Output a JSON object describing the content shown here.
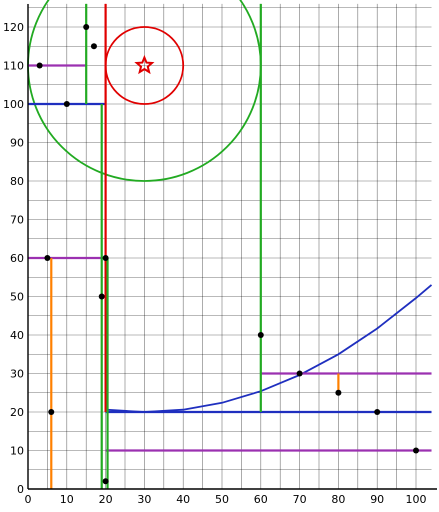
{
  "chart_data": {
    "type": "scatter",
    "title": "",
    "xlabel": "",
    "ylabel": "",
    "xlim": [
      0,
      104
    ],
    "ylim": [
      0,
      126
    ],
    "grid": true,
    "x_ticks": [
      0,
      10,
      20,
      30,
      40,
      50,
      60,
      70,
      80,
      90,
      100
    ],
    "y_ticks": [
      0,
      10,
      20,
      30,
      40,
      50,
      60,
      70,
      80,
      90,
      100,
      110,
      120
    ],
    "x_tick_labels": [
      "0",
      "10",
      "20",
      "30",
      "40",
      "50",
      "60",
      "70",
      "80",
      "90",
      "100"
    ],
    "y_tick_labels": [
      "0",
      "10",
      "20",
      "30",
      "40",
      "50",
      "60",
      "70",
      "80",
      "90",
      "100",
      "110",
      "120"
    ],
    "colors": {
      "grid": "#000000",
      "red": "#e00000",
      "green": "#22aa22",
      "blue": "#1f2fbf",
      "purple": "#9b30b0",
      "orange": "#ff8000",
      "point": "#000000"
    },
    "points": [
      {
        "x": 15,
        "y": 120
      },
      {
        "x": 17,
        "y": 115
      },
      {
        "x": 3,
        "y": 110
      },
      {
        "x": 10,
        "y": 100
      },
      {
        "x": 5,
        "y": 60
      },
      {
        "x": 20,
        "y": 60
      },
      {
        "x": 19,
        "y": 50
      },
      {
        "x": 6,
        "y": 20
      },
      {
        "x": 20,
        "y": 2
      },
      {
        "x": 60,
        "y": 40
      },
      {
        "x": 70,
        "y": 30
      },
      {
        "x": 80,
        "y": 25
      },
      {
        "x": 90,
        "y": 20
      },
      {
        "x": 100,
        "y": 10
      }
    ],
    "segments": [
      {
        "color": "purple",
        "x1": 0,
        "y1": 110,
        "x2": 15,
        "y2": 110
      },
      {
        "color": "blue",
        "x1": 0,
        "y1": 100,
        "x2": 20,
        "y2": 100
      },
      {
        "color": "purple",
        "x1": 0,
        "y1": 60,
        "x2": 20,
        "y2": 60
      },
      {
        "color": "purple",
        "x1": 60,
        "y1": 30,
        "x2": 104,
        "y2": 30
      },
      {
        "color": "blue",
        "x1": 20,
        "y1": 20,
        "x2": 104,
        "y2": 20
      },
      {
        "color": "purple",
        "x1": 20,
        "y1": 10,
        "x2": 104,
        "y2": 10
      },
      {
        "color": "green",
        "x1": 15,
        "y1": 100,
        "x2": 15,
        "y2": 126
      },
      {
        "color": "red",
        "x1": 20,
        "y1": 20,
        "x2": 20,
        "y2": 126
      },
      {
        "color": "green",
        "x1": 19,
        "y1": 0,
        "x2": 19,
        "y2": 100
      },
      {
        "color": "green",
        "x1": 20.5,
        "y1": 0,
        "x2": 20.5,
        "y2": 60
      },
      {
        "color": "green",
        "x1": 60,
        "y1": 20,
        "x2": 60,
        "y2": 126
      },
      {
        "color": "orange",
        "x1": 6,
        "y1": 0,
        "x2": 6,
        "y2": 60
      },
      {
        "color": "orange",
        "x1": 80,
        "y1": 25,
        "x2": 80,
        "y2": 30
      }
    ],
    "circles": [
      {
        "color": "red",
        "cx": 30,
        "cy": 110,
        "r": 10
      },
      {
        "color": "green",
        "cx": 30,
        "cy": 110,
        "r": 30
      }
    ],
    "star": {
      "color": "red",
      "x": 30,
      "y": 110
    },
    "curve": {
      "color": "blue",
      "points": [
        [
          20,
          20.6
        ],
        [
          30,
          20
        ],
        [
          40,
          20.6
        ],
        [
          50,
          22.4
        ],
        [
          60,
          25.4
        ],
        [
          70,
          29.6
        ],
        [
          80,
          35
        ],
        [
          90,
          41.7
        ],
        [
          100,
          49.6
        ],
        [
          104,
          53
        ]
      ]
    }
  }
}
